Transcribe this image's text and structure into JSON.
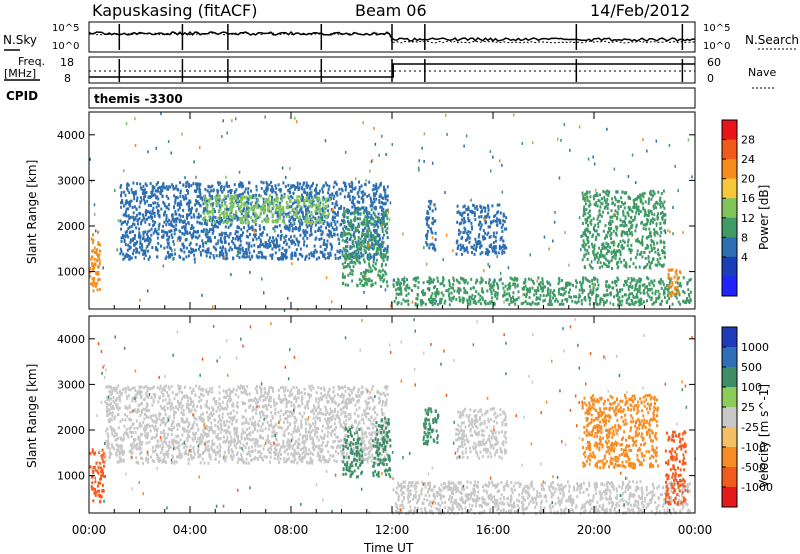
{
  "header": {
    "station": "Kapuskasing (fitACF)",
    "beam": "Beam 06",
    "date": "14/Feb/2012"
  },
  "top_panels": {
    "nsky_label": "N.Sky",
    "nsky_tick_top": "10^5",
    "nsky_tick_bottom": "10^0",
    "nsearch_label": "N.Search",
    "freq_label_line1": "Freq.",
    "freq_label_line2": "[MHz]",
    "freq_tick_top": "18",
    "freq_tick_bottom": "8",
    "nave_tick_top": "60",
    "nave_tick_bottom": "0",
    "nave_label": "Nave",
    "cpid_label": "CPID",
    "cpid_value": "themis -3300"
  },
  "power_colorbar": {
    "label": "Power [dB]",
    "ticks": [
      "28",
      "24",
      "20",
      "16",
      "12",
      "8",
      "4"
    ],
    "colors": [
      "#e8141a",
      "#f25a1c",
      "#f58c1e",
      "#f6c83a",
      "#7fc55c",
      "#3f9a65",
      "#2d6fb0",
      "#1a3db8",
      "#2022ff"
    ]
  },
  "velocity_colorbar": {
    "label": "Velocity [m s^-1]",
    "ticks": [
      "1000",
      "500",
      "100",
      "25",
      "-25",
      "-100",
      "-500",
      "-1000"
    ],
    "colors": [
      "#1e3ab8",
      "#2f6fb5",
      "#3e8f68",
      "#8ccc59",
      "#c8c8c8",
      "#f5c063",
      "#f58d24",
      "#f35a1d",
      "#e51a1a"
    ]
  },
  "chart_data": [
    {
      "type": "heatmap",
      "name": "power",
      "ylabel": "Slant Range [km]",
      "xlabel": "",
      "yticks": [
        1000,
        2000,
        3000,
        4000
      ],
      "ylim": [
        180,
        4500
      ],
      "xlim": [
        0,
        24
      ],
      "regions": [
        {
          "t0": 0.0,
          "t1": 0.4,
          "r0": 600,
          "r1": 1900,
          "value": 22
        },
        {
          "t0": 1.2,
          "t1": 11.8,
          "r0": 1300,
          "r1": 3000,
          "value": 8
        },
        {
          "t0": 4.5,
          "t1": 9.5,
          "r0": 2100,
          "r1": 2700,
          "value": 14
        },
        {
          "t0": 10.0,
          "t1": 11.8,
          "r0": 700,
          "r1": 2400,
          "value": 12
        },
        {
          "t0": 12.0,
          "t1": 23.8,
          "r0": 300,
          "r1": 900,
          "value": 12
        },
        {
          "t0": 13.3,
          "t1": 13.7,
          "r0": 1500,
          "r1": 2600,
          "value": 8
        },
        {
          "t0": 14.5,
          "t1": 16.5,
          "r0": 1400,
          "r1": 2500,
          "value": 8
        },
        {
          "t0": 19.5,
          "t1": 22.8,
          "r0": 1100,
          "r1": 2800,
          "value": 10
        },
        {
          "t0": 22.9,
          "t1": 23.4,
          "r0": 500,
          "r1": 1100,
          "value": 24
        }
      ]
    },
    {
      "type": "heatmap",
      "name": "velocity",
      "ylabel": "Slant Range [km]",
      "xlabel": "Time UT",
      "yticks": [
        1000,
        2000,
        3000,
        4000
      ],
      "ylim": [
        180,
        4500
      ],
      "xlim": [
        0,
        24
      ],
      "xticks": [
        "00:00",
        "04:00",
        "08:00",
        "12:00",
        "16:00",
        "20:00",
        "00:00"
      ],
      "regions": [
        {
          "t0": 0.0,
          "t1": 0.6,
          "r0": 400,
          "r1": 1600,
          "value": -500
        },
        {
          "t0": 0.6,
          "t1": 11.8,
          "r0": 1300,
          "r1": 3000,
          "value": 0
        },
        {
          "t0": 10.0,
          "t1": 10.8,
          "r0": 1000,
          "r1": 2100,
          "value": 100
        },
        {
          "t0": 11.2,
          "t1": 11.9,
          "r0": 1000,
          "r1": 2300,
          "value": 100
        },
        {
          "t0": 12.0,
          "t1": 23.8,
          "r0": 200,
          "r1": 900,
          "value": 0
        },
        {
          "t0": 13.2,
          "t1": 13.8,
          "r0": 1700,
          "r1": 2500,
          "value": 250
        },
        {
          "t0": 14.5,
          "t1": 16.5,
          "r0": 1400,
          "r1": 2500,
          "value": 0
        },
        {
          "t0": 19.5,
          "t1": 22.5,
          "r0": 1200,
          "r1": 2800,
          "value": -80
        },
        {
          "t0": 22.8,
          "t1": 23.6,
          "r0": 400,
          "r1": 2000,
          "value": -500
        }
      ]
    }
  ]
}
